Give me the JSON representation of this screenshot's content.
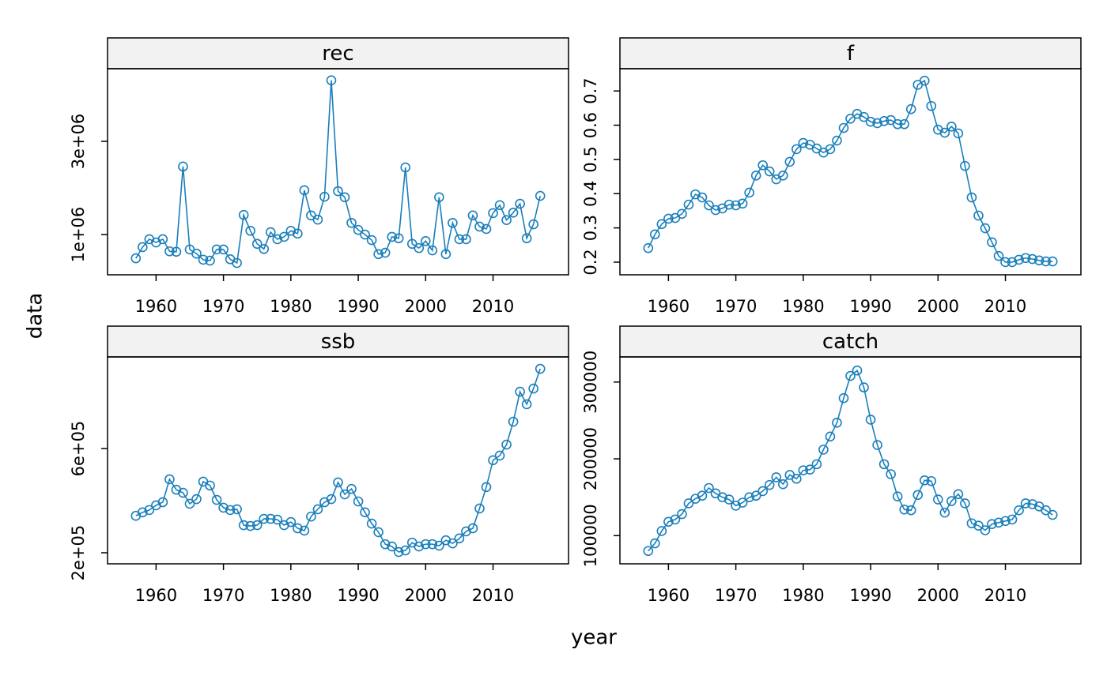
{
  "axis_labels": {
    "x": "year",
    "y": "data"
  },
  "chart_data": [
    {
      "type": "line",
      "title": "rec",
      "color": "#1a7fbb",
      "x": [
        1957,
        1958,
        1959,
        1960,
        1961,
        1962,
        1963,
        1964,
        1965,
        1966,
        1967,
        1968,
        1969,
        1970,
        1971,
        1972,
        1973,
        1974,
        1975,
        1976,
        1977,
        1978,
        1979,
        1980,
        1981,
        1982,
        1983,
        1984,
        1985,
        1986,
        1987,
        1988,
        1989,
        1990,
        1991,
        1992,
        1993,
        1994,
        1995,
        1996,
        1997,
        1998,
        1999,
        2000,
        2001,
        2002,
        2003,
        2004,
        2005,
        2006,
        2007,
        2008,
        2009,
        2010,
        2011,
        2012,
        2013,
        2014,
        2015,
        2016,
        2017
      ],
      "values": [
        490000,
        730000,
        900000,
        830000,
        900000,
        640000,
        630000,
        2460000,
        680000,
        590000,
        460000,
        440000,
        680000,
        680000,
        470000,
        390000,
        1420000,
        1080000,
        800000,
        690000,
        1050000,
        900000,
        950000,
        1080000,
        1020000,
        1950000,
        1410000,
        1320000,
        1810000,
        4310000,
        1930000,
        1800000,
        1250000,
        1100000,
        1000000,
        880000,
        580000,
        610000,
        950000,
        920000,
        2440000,
        800000,
        710000,
        860000,
        660000,
        1800000,
        580000,
        1250000,
        900000,
        900000,
        1410000,
        1170000,
        1120000,
        1460000,
        1630000,
        1310000,
        1470000,
        1660000,
        920000,
        1220000,
        1830000
      ],
      "xlim": [
        1952.8,
        2021.2
      ],
      "xticks": [
        1960,
        1970,
        1980,
        1990,
        2000,
        2010
      ],
      "ylim": [
        136000,
        4559000
      ],
      "yticks": [
        {
          "value": 1000000,
          "label": "1e+06"
        },
        {
          "value": 3000000,
          "label": "3e+06"
        }
      ]
    },
    {
      "type": "line",
      "title": "f",
      "color": "#1a7fbb",
      "x": [
        1957,
        1958,
        1959,
        1960,
        1961,
        1962,
        1963,
        1964,
        1965,
        1966,
        1967,
        1968,
        1969,
        1970,
        1971,
        1972,
        1973,
        1974,
        1975,
        1976,
        1977,
        1978,
        1979,
        1980,
        1981,
        1982,
        1983,
        1984,
        1985,
        1986,
        1987,
        1988,
        1989,
        1990,
        1991,
        1992,
        1993,
        1994,
        1995,
        1996,
        1997,
        1998,
        1999,
        2000,
        2001,
        2002,
        2003,
        2004,
        2005,
        2006,
        2007,
        2008,
        2009,
        2010,
        2011,
        2012,
        2013,
        2014,
        2015,
        2016,
        2017
      ],
      "values": [
        0.241,
        0.281,
        0.311,
        0.327,
        0.329,
        0.341,
        0.368,
        0.398,
        0.389,
        0.366,
        0.352,
        0.357,
        0.368,
        0.366,
        0.371,
        0.403,
        0.453,
        0.483,
        0.465,
        0.442,
        0.453,
        0.493,
        0.53,
        0.548,
        0.543,
        0.532,
        0.52,
        0.53,
        0.555,
        0.592,
        0.619,
        0.633,
        0.624,
        0.61,
        0.606,
        0.612,
        0.615,
        0.603,
        0.603,
        0.647,
        0.718,
        0.73,
        0.656,
        0.587,
        0.578,
        0.596,
        0.576,
        0.481,
        0.389,
        0.336,
        0.299,
        0.258,
        0.218,
        0.2,
        0.2,
        0.207,
        0.212,
        0.209,
        0.205,
        0.202,
        0.202
      ],
      "xlim": [
        1952.8,
        2021.2
      ],
      "xticks": [
        1960,
        1970,
        1980,
        1990,
        2000,
        2010
      ],
      "ylim": [
        0.163,
        0.765
      ],
      "yticks": [
        0.2,
        0.3,
        0.4,
        0.5,
        0.6,
        0.7
      ]
    },
    {
      "type": "line",
      "title": "ssb",
      "color": "#1a7fbb",
      "x": [
        1957,
        1958,
        1959,
        1960,
        1961,
        1962,
        1963,
        1964,
        1965,
        1966,
        1967,
        1968,
        1969,
        1970,
        1971,
        1972,
        1973,
        1974,
        1975,
        1976,
        1977,
        1978,
        1979,
        1980,
        1981,
        1982,
        1983,
        1984,
        1985,
        1986,
        1987,
        1988,
        1989,
        1990,
        1991,
        1992,
        1993,
        1994,
        1995,
        1996,
        1997,
        1998,
        1999,
        2000,
        2001,
        2002,
        2003,
        2004,
        2005,
        2006,
        2007,
        2008,
        2009,
        2010,
        2011,
        2012,
        2013,
        2014,
        2015,
        2016,
        2017
      ],
      "values": [
        342000,
        355000,
        364000,
        382000,
        394000,
        482000,
        442000,
        430000,
        388000,
        406000,
        473000,
        458000,
        403000,
        373000,
        364000,
        367000,
        306000,
        303000,
        306000,
        330000,
        330000,
        327000,
        306000,
        318000,
        294000,
        285000,
        339000,
        367000,
        394000,
        406000,
        470000,
        424000,
        445000,
        397000,
        355000,
        312000,
        279000,
        233000,
        224000,
        203000,
        209000,
        239000,
        224000,
        233000,
        233000,
        227000,
        248000,
        236000,
        255000,
        282000,
        294000,
        370000,
        452000,
        555000,
        573000,
        615000,
        703000,
        818000,
        770000,
        830000,
        906000
      ],
      "xlim": [
        1952.8,
        2021.2
      ],
      "xticks": [
        1960,
        1970,
        1980,
        1990,
        2000,
        2010
      ],
      "ylim": [
        157600,
        951500
      ],
      "yticks": [
        {
          "value": 200000,
          "label": "2e+05"
        },
        {
          "value": 600000,
          "label": "6e+05"
        }
      ]
    },
    {
      "type": "line",
      "title": "catch",
      "color": "#1a7fbb",
      "x": [
        1957,
        1958,
        1959,
        1960,
        1961,
        1962,
        1963,
        1964,
        1965,
        1966,
        1967,
        1968,
        1969,
        1970,
        1971,
        1972,
        1973,
        1974,
        1975,
        1976,
        1977,
        1978,
        1979,
        1980,
        1981,
        1982,
        1983,
        1984,
        1985,
        1986,
        1987,
        1988,
        1989,
        1990,
        1991,
        1992,
        1993,
        1994,
        1995,
        1996,
        1997,
        1998,
        1999,
        2000,
        2001,
        2002,
        2003,
        2004,
        2005,
        2006,
        2007,
        2008,
        2009,
        2010,
        2011,
        2012,
        2013,
        2014,
        2015,
        2016,
        2017
      ],
      "values": [
        80000,
        90000,
        106000,
        118000,
        121000,
        128000,
        142000,
        148000,
        152000,
        162000,
        155000,
        150000,
        147000,
        139000,
        143000,
        150000,
        152000,
        158000,
        166000,
        176000,
        167000,
        179000,
        174000,
        185000,
        186000,
        193000,
        212000,
        229000,
        247000,
        279000,
        308000,
        315000,
        293000,
        251000,
        218000,
        193000,
        180000,
        151000,
        134000,
        133000,
        153000,
        172000,
        171000,
        147000,
        130000,
        145000,
        154000,
        142000,
        116000,
        113000,
        107000,
        115000,
        117000,
        119000,
        121000,
        133000,
        142000,
        141000,
        138000,
        133000,
        127000
      ],
      "xlim": [
        1952.8,
        2021.2
      ],
      "xticks": [
        1960,
        1970,
        1980,
        1990,
        2000,
        2010
      ],
      "ylim": [
        63300,
        332700
      ],
      "yticks": [
        100000,
        200000,
        300000
      ]
    }
  ]
}
